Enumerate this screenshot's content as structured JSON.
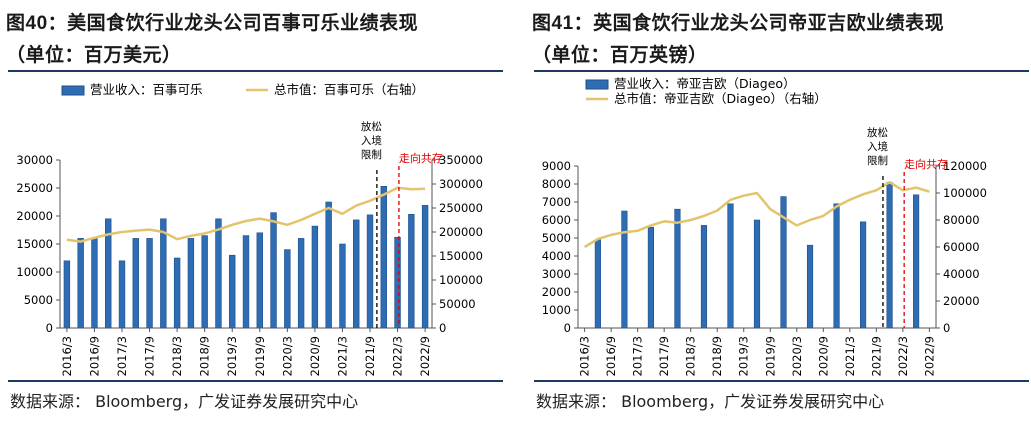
{
  "colors": {
    "bar": "#2e6db4",
    "bar_edge": "#1f4e8a",
    "line": "#e3c46d",
    "frame": "#1f3864",
    "event_line": "#000000",
    "event_red": "#e00000"
  },
  "left": {
    "title_prefix": "图",
    "title_num": "40",
    "title_text": "：美国食饮行业龙头公司百事可乐业绩表现",
    "subtitle": "（单位：百万美元）",
    "source": "数据来源：  Bloomberg，广发证券发展研究中心",
    "chart_data": {
      "type": "bar",
      "categories": [
        "2016/3",
        "2016/6",
        "2016/9",
        "2016/12",
        "2017/3",
        "2017/6",
        "2017/9",
        "2017/12",
        "2018/3",
        "2018/6",
        "2018/9",
        "2018/12",
        "2019/3",
        "2019/6",
        "2019/9",
        "2019/12",
        "2020/3",
        "2020/6",
        "2020/9",
        "2020/12",
        "2021/3",
        "2021/6",
        "2021/9",
        "2021/12",
        "2022/3",
        "2022/6",
        "2022/9"
      ],
      "x_tick_labels": [
        "2016/3",
        "2016/9",
        "2017/3",
        "2017/9",
        "2018/3",
        "2018/9",
        "2019/3",
        "2019/9",
        "2020/3",
        "2020/9",
        "2021/3",
        "2021/9",
        "2022/3",
        "2022/9"
      ],
      "series": [
        {
          "name": "营业收入：百事可乐",
          "type": "bar",
          "axis": "left",
          "values": [
            12000,
            16000,
            16000,
            19500,
            12000,
            16000,
            16000,
            19500,
            12500,
            16000,
            16500,
            19500,
            13000,
            16500,
            17000,
            20600,
            14000,
            16000,
            18200,
            22500,
            15000,
            19300,
            20200,
            25300,
            16200,
            20300,
            21900
          ]
        },
        {
          "name": "总市值：百事可乐（右轴）",
          "type": "line",
          "axis": "right",
          "values": [
            184000,
            180000,
            188000,
            195000,
            200000,
            203000,
            205000,
            200000,
            185000,
            192000,
            197000,
            205000,
            215000,
            223000,
            228000,
            222000,
            215000,
            225000,
            238000,
            250000,
            238000,
            255000,
            265000,
            278000,
            292000,
            289000,
            290000
          ]
        }
      ],
      "ylim": [
        0,
        30000
      ],
      "y_ticks": [
        0,
        5000,
        10000,
        15000,
        20000,
        25000,
        30000
      ],
      "y2lim": [
        0,
        350000
      ],
      "y2_ticks": [
        0,
        50000,
        100000,
        150000,
        200000,
        250000,
        300000,
        350000
      ],
      "legend_position": "top",
      "annotations": [
        {
          "text": "放松入境限制",
          "at_category": "2021/12",
          "style": "black-dashed"
        },
        {
          "text": "走向共存",
          "at_category": "2022/3",
          "style": "red-dashed"
        }
      ]
    }
  },
  "right": {
    "title_prefix": "图",
    "title_num": "41",
    "title_text": "：英国食饮行业龙头公司帝亚吉欧业绩表现",
    "subtitle": "（单位：百万英镑）",
    "source": "数据来源：  Bloomberg，广发证券发展研究中心",
    "chart_data": {
      "type": "bar",
      "categories": [
        "2016/3",
        "2016/6",
        "2016/9",
        "2016/12",
        "2017/3",
        "2017/6",
        "2017/9",
        "2017/12",
        "2018/3",
        "2018/6",
        "2018/9",
        "2018/12",
        "2019/3",
        "2019/6",
        "2019/9",
        "2019/12",
        "2020/3",
        "2020/6",
        "2020/9",
        "2020/12",
        "2021/3",
        "2021/6",
        "2021/9",
        "2021/12",
        "2022/3",
        "2022/6",
        "2022/9"
      ],
      "x_tick_labels": [
        "2016/3",
        "2016/9",
        "2017/3",
        "2017/9",
        "2018/3",
        "2018/9",
        "2019/3",
        "2019/9",
        "2020/3",
        "2020/9",
        "2021/3",
        "2021/9",
        "2022/3",
        "2022/9"
      ],
      "series": [
        {
          "name": "营业收入：帝亚吉欧（Diageo）",
          "type": "bar",
          "axis": "left",
          "values": [
            null,
            4900,
            null,
            6500,
            null,
            5600,
            null,
            6600,
            null,
            5700,
            null,
            6900,
            null,
            6000,
            null,
            7300,
            null,
            4600,
            null,
            6900,
            null,
            5900,
            null,
            8100,
            null,
            7400,
            null
          ]
        },
        {
          "name": "总市值：帝亚吉欧（Diageo）（右轴）",
          "type": "line",
          "axis": "right",
          "values": [
            60000,
            66000,
            69000,
            71000,
            72000,
            76000,
            79000,
            78000,
            80000,
            83000,
            87000,
            95000,
            98000,
            100000,
            88000,
            82000,
            76000,
            80000,
            83000,
            90000,
            95000,
            99000,
            102000,
            108000,
            102000,
            104000,
            101000
          ]
        }
      ],
      "ylim": [
        0,
        9000
      ],
      "y_ticks": [
        0,
        1000,
        2000,
        3000,
        4000,
        5000,
        6000,
        7000,
        8000,
        9000
      ],
      "y2lim": [
        0,
        120000
      ],
      "y2_ticks": [
        0,
        20000,
        40000,
        60000,
        80000,
        100000,
        120000
      ],
      "legend_position": "top",
      "annotations": [
        {
          "text": "放松入境限制",
          "at_category": "2021/12",
          "style": "black-dashed"
        },
        {
          "text": "走向共存",
          "at_category": "2022/3",
          "style": "red-dashed"
        }
      ]
    }
  }
}
